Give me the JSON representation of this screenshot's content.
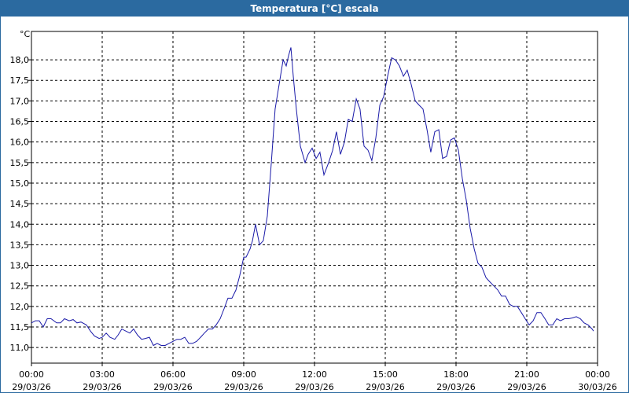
{
  "chart_data": {
    "type": "line",
    "title": "Temperatura [°C] escala",
    "y_unit": "°C",
    "x": [
      0,
      0.17,
      0.33,
      0.5,
      0.67,
      0.83,
      1.07,
      1.23,
      1.4,
      1.6,
      1.77,
      1.93,
      2.1,
      2.33,
      2.5,
      2.67,
      2.87,
      3,
      3.17,
      3.33,
      3.53,
      3.67,
      3.83,
      4,
      4.17,
      4.33,
      4.5,
      4.67,
      4.83,
      5,
      5.17,
      5.33,
      5.5,
      5.67,
      5.83,
      6,
      6.17,
      6.33,
      6.5,
      6.67,
      6.83,
      7,
      7.17,
      7.33,
      7.5,
      7.67,
      7.83,
      8,
      8.17,
      8.33,
      8.5,
      8.67,
      8.83,
      9,
      9.1,
      9.27,
      9.37,
      9.5,
      9.67,
      9.83,
      10,
      10.17,
      10.33,
      10.5,
      10.67,
      10.8,
      10.9,
      11,
      11.1,
      11.23,
      11.4,
      11.6,
      11.73,
      11.9,
      12.07,
      12.23,
      12.4,
      12.6,
      12.77,
      12.93,
      13.1,
      13.27,
      13.43,
      13.6,
      13.77,
      13.93,
      14.1,
      14.27,
      14.43,
      14.6,
      14.77,
      14.93,
      15.1,
      15.27,
      15.43,
      15.6,
      15.77,
      15.93,
      16.1,
      16.27,
      16.43,
      16.6,
      16.77,
      16.93,
      17.1,
      17.27,
      17.43,
      17.6,
      17.77,
      17.93,
      18.1,
      18.27,
      18.43,
      18.6,
      18.77,
      18.93,
      19.1,
      19.27,
      19.43,
      19.6,
      19.77,
      19.93,
      20.1,
      20.27,
      20.43,
      20.6,
      20.77,
      20.93,
      21.1,
      21.27,
      21.43,
      21.6,
      21.77,
      21.93,
      22.1,
      22.27,
      22.43,
      22.6,
      22.77,
      22.93,
      23.1,
      23.27,
      23.43,
      23.6,
      23.77,
      23.83
    ],
    "series": [
      {
        "name": "Temperatura",
        "color": "#1a1aa8",
        "values": [
          11.6,
          11.65,
          11.65,
          11.5,
          11.7,
          11.7,
          11.6,
          11.6,
          11.7,
          11.65,
          11.68,
          11.6,
          11.62,
          11.55,
          11.4,
          11.28,
          11.22,
          11.25,
          11.35,
          11.25,
          11.2,
          11.3,
          11.45,
          11.4,
          11.35,
          11.45,
          11.3,
          11.2,
          11.22,
          11.25,
          11.05,
          11.1,
          11.05,
          11.05,
          11.1,
          11.15,
          11.2,
          11.2,
          11.25,
          11.1,
          11.1,
          11.15,
          11.25,
          11.35,
          11.45,
          11.45,
          11.55,
          11.7,
          11.95,
          12.2,
          12.2,
          12.4,
          12.75,
          13.2,
          13.2,
          13.4,
          13.6,
          14.0,
          13.5,
          13.6,
          14.2,
          15.5,
          16.8,
          17.4,
          18.0,
          17.85,
          18.1,
          18.3,
          17.6,
          16.8,
          15.9,
          15.5,
          15.7,
          15.85,
          15.6,
          15.75,
          15.2,
          15.5,
          15.8,
          16.25,
          15.7,
          16.0,
          16.55,
          16.5,
          17.05,
          16.8,
          15.9,
          15.8,
          15.55,
          16.1,
          16.9,
          17.1,
          17.6,
          18.05,
          18.0,
          17.85,
          17.6,
          17.75,
          17.4,
          17.0,
          16.9,
          16.8,
          16.3,
          15.75,
          16.25,
          16.3,
          15.6,
          15.65,
          16.05,
          16.1,
          15.8,
          15.1,
          14.6,
          13.9,
          13.4,
          13.05,
          12.95,
          12.7,
          12.6,
          12.5,
          12.4,
          12.25,
          12.25,
          12.05,
          12.0,
          12.0,
          11.85,
          11.7,
          11.55,
          11.65,
          11.85,
          11.85,
          11.7,
          11.55,
          11.55,
          11.7,
          11.65,
          11.7,
          11.7,
          11.72,
          11.75,
          11.7,
          11.6,
          11.55,
          11.45,
          11.4
        ]
      }
    ],
    "xlim": [
      0,
      24
    ],
    "xticks": [
      {
        "value": 0,
        "label": "00:00 29/03/26"
      },
      {
        "value": 3,
        "label": "03:00 29/03/26"
      },
      {
        "value": 6,
        "label": "06:00 29/03/26"
      },
      {
        "value": 9,
        "label": "09:00 29/03/26"
      },
      {
        "value": 12,
        "label": "12:00 29/03/26"
      },
      {
        "value": 15,
        "label": "15:00 29/03/26"
      },
      {
        "value": 18,
        "label": "18:00 29/03/26"
      },
      {
        "value": 21,
        "label": "21:00 29/03/26"
      },
      {
        "value": 24,
        "label": "00:00 30/03/26"
      }
    ],
    "ylim": [
      10.62,
      18.69
    ],
    "yticks": [
      {
        "value": 11,
        "label": "11,0"
      },
      {
        "value": 11.5,
        "label": "11,5"
      },
      {
        "value": 12,
        "label": "12,0"
      },
      {
        "value": 12.5,
        "label": "12,5"
      },
      {
        "value": 13,
        "label": "13,0"
      },
      {
        "value": 13.5,
        "label": "13,5"
      },
      {
        "value": 14,
        "label": "14,0"
      },
      {
        "value": 14.5,
        "label": "14,5"
      },
      {
        "value": 15,
        "label": "15,0"
      },
      {
        "value": 15.5,
        "label": "15,5"
      },
      {
        "value": 16,
        "label": "16,0"
      },
      {
        "value": 16.5,
        "label": "16,5"
      },
      {
        "value": 17,
        "label": "17,0"
      },
      {
        "value": 17.5,
        "label": "17,5"
      },
      {
        "value": 18,
        "label": "18,0"
      }
    ],
    "grid": true
  }
}
